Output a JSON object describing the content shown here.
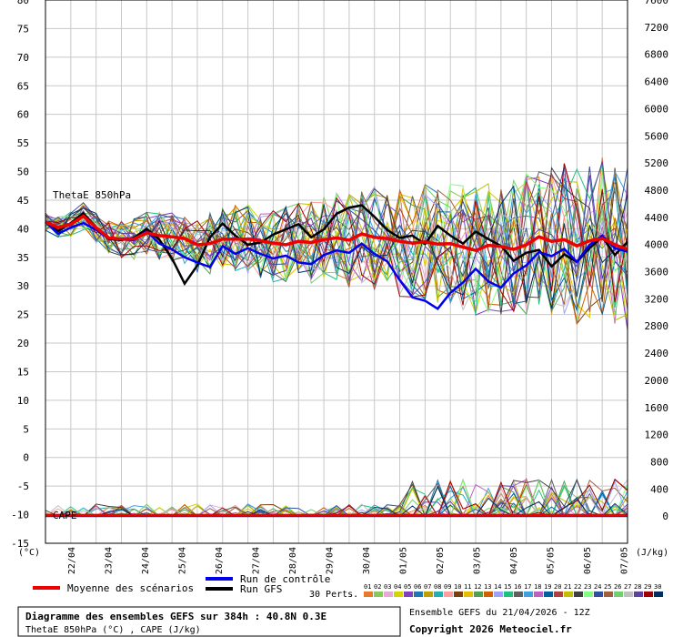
{
  "chart_data": {
    "type": "line",
    "left_axis": {
      "min": -15,
      "max": 80,
      "ticks": [
        -15,
        -10,
        -5,
        0,
        5,
        10,
        15,
        20,
        25,
        30,
        35,
        40,
        45,
        50,
        55,
        60,
        65,
        70,
        75,
        80
      ],
      "unit": "(°C)"
    },
    "right_axis": {
      "min": -400,
      "max": 7600,
      "ticks": [
        0,
        400,
        800,
        1200,
        1600,
        2000,
        2400,
        2800,
        3200,
        3600,
        4000,
        4400,
        4800,
        5200,
        5600,
        6000,
        6400,
        6800,
        7200,
        7600
      ],
      "unit": "(J/kg)"
    },
    "x_labels": [
      "22/04",
      "23/04",
      "24/04",
      "25/04",
      "26/04",
      "27/04",
      "28/04",
      "29/04",
      "30/04",
      "01/05",
      "02/05",
      "03/05",
      "04/05",
      "05/05",
      "06/05",
      "07/05"
    ],
    "grid": true,
    "annotations": {
      "thetae": "ThetaE 850hPa",
      "cape": "CAPE"
    },
    "series": [
      {
        "name": "Moyenne des scénarios",
        "color": "#ee0000",
        "values": [
          41.2,
          40.2,
          40.8,
          42.2,
          40.2,
          38.4,
          38.2,
          38.2,
          39.3,
          38.8,
          38.6,
          38.3,
          37.2,
          37.4,
          38.2,
          38.2,
          38.2,
          37.9,
          37.5,
          37.2,
          37.8,
          37.6,
          38.1,
          38.4,
          38.0,
          39.1,
          38.5,
          38.3,
          37.8,
          37.5,
          37.7,
          37.3,
          37.4,
          36.8,
          36.2,
          37.1,
          36.9,
          36.4,
          37.2,
          38.6,
          37.8,
          38.1,
          37.0,
          37.9,
          38.3,
          37.2,
          36.4
        ]
      },
      {
        "name": "Run de contrôle",
        "color": "#0000ee",
        "values": [
          41.2,
          39.1,
          40.2,
          41.0,
          39.8,
          38.3,
          38.1,
          38.0,
          39.6,
          37.4,
          36.4,
          35.0,
          34.1,
          33.3,
          37.0,
          35.6,
          36.6,
          35.6,
          34.8,
          35.3,
          34.1,
          33.8,
          35.4,
          36.2,
          35.8,
          37.4,
          35.6,
          34.3,
          31.0,
          28.0,
          27.4,
          26.0,
          28.8,
          30.6,
          33.0,
          30.8,
          29.7,
          32.2,
          33.6,
          35.9,
          35.2,
          36.5,
          34.2,
          37.2,
          38.8,
          36.6,
          36.0
        ]
      },
      {
        "name": "Run GFS",
        "color": "#000000",
        "values": [
          41.2,
          39.6,
          41.0,
          42.7,
          40.3,
          38.2,
          38.0,
          38.4,
          40.0,
          38.1,
          34.8,
          30.4,
          33.6,
          38.5,
          40.9,
          38.8,
          37.2,
          37.6,
          39.0,
          39.9,
          40.8,
          38.5,
          39.9,
          42.6,
          43.7,
          44.1,
          42.1,
          39.8,
          38.4,
          38.8,
          37.3,
          40.5,
          38.8,
          37.4,
          39.5,
          38.2,
          37.0,
          34.4,
          35.8,
          36.3,
          33.4,
          35.5,
          34.2,
          36.6,
          38.6,
          35.4,
          37.7
        ]
      }
    ],
    "perturbations": {
      "label": "30 Perts.",
      "count": 30
    }
  },
  "legend": {
    "mean": "Moyenne des scénarios",
    "control": "Run de contrôle",
    "gfs": "Run GFS",
    "perts": "30 Perts.",
    "pert_numbers": [
      "01",
      "02",
      "03",
      "04",
      "05",
      "06",
      "07",
      "08",
      "09",
      "10",
      "11",
      "12",
      "13",
      "14",
      "15",
      "16",
      "17",
      "18",
      "19",
      "20",
      "21",
      "22",
      "23",
      "24",
      "25",
      "26",
      "27",
      "28",
      "29",
      "30"
    ],
    "pert_colors": [
      "#e87a2a",
      "#87c95a",
      "#e8a8d8",
      "#d4d400",
      "#8040c0",
      "#1f77b4",
      "#c0a000",
      "#20b0b0",
      "#ff9e9e",
      "#7a4010",
      "#e0c000",
      "#50a050",
      "#d06000",
      "#a0a0ff",
      "#20c080",
      "#606060",
      "#40a0e0",
      "#c060c0",
      "#0060a0",
      "#b04040",
      "#c0c000",
      "#404040",
      "#80ff80",
      "#3050a0",
      "#a06040",
      "#70d070",
      "#c0c0c0",
      "#6040a0",
      "#a00000",
      "#003060"
    ]
  },
  "title_box": {
    "line1": "Diagramme des ensembles GEFS sur 384h : 40.8N 0.3E",
    "line2": "ThetaE 850hPa (°C) , CAPE (J/kg)"
  },
  "footer": {
    "ensemble": "Ensemble GEFS du 21/04/2026 - 12Z",
    "copyright": "Copyright 2026 Meteociel.fr"
  }
}
